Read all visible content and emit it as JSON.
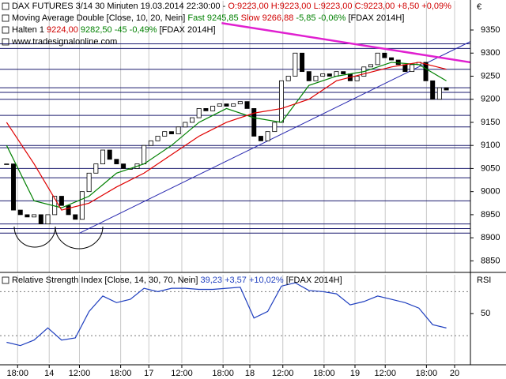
{
  "chart_data": [
    {
      "type": "candlestick",
      "legend_lines": [
        [
          {
            "text": "DAX FUTURES 3/14 30 Minuten  19.03.2014 22:30:00 -",
            "color": "#000000"
          },
          {
            "text": "O:9223,00 H:9223,00 L:9223,00 C:9223,00 +8,50 +0,09%",
            "color": "#d00000"
          }
        ],
        [
          {
            "text": "Moving Average Double [Close, 10, 20, Nein]",
            "color": "#000000"
          },
          {
            "text": "Fast 9245,85",
            "color": "#008000"
          },
          {
            "text": "Slow 9266,88",
            "color": "#d00000"
          },
          {
            "text": "-5,85 -0,06%",
            "color": "#008000"
          },
          {
            "text": "[FDAX 2014H]",
            "color": "#000000"
          }
        ],
        [
          {
            "text": "Halten 1",
            "color": "#000000"
          },
          {
            "text": "9224,00",
            "color": "#d00000"
          },
          {
            "text": "9282,50",
            "color": "#008000"
          },
          {
            "text": "-45 -0,49%",
            "color": "#008000"
          },
          {
            "text": "[FDAX 2014H]",
            "color": "#000000"
          }
        ],
        [
          {
            "text": "www.tradesignalonline.com",
            "color": "#000000"
          }
        ]
      ],
      "currency": "€",
      "xlim": [
        -0.5,
        67.5
      ],
      "xticks": [
        {
          "value": 1.6,
          "label": "18:00"
        },
        {
          "value": 6.2,
          "label": "14"
        },
        {
          "value": 10.6,
          "label": "12:00"
        },
        {
          "value": 16.6,
          "label": "18:00"
        },
        {
          "value": 20.7,
          "label": "17"
        },
        {
          "value": 25.5,
          "label": "12:00"
        },
        {
          "value": 31.5,
          "label": "18:00"
        },
        {
          "value": 35.4,
          "label": "18"
        },
        {
          "value": 40.2,
          "label": "12:00"
        },
        {
          "value": 46.2,
          "label": "18:00"
        },
        {
          "value": 50.7,
          "label": "19"
        },
        {
          "value": 55.1,
          "label": "12:00"
        },
        {
          "value": 61.1,
          "label": "18:00"
        },
        {
          "value": 65.2,
          "label": "20"
        }
      ],
      "ylim": [
        8825,
        9415
      ],
      "yticks": [
        8850,
        8900,
        8950,
        9000,
        9050,
        9100,
        9150,
        9200,
        9250,
        9300,
        9350
      ],
      "values": [
        9060,
        8960,
        8950,
        8945,
        8950,
        8930,
        8950,
        8990,
        8970,
        8950,
        8940,
        9000,
        9040,
        9060,
        9090,
        9070,
        9060,
        9050,
        9050,
        9060,
        9100,
        9110,
        9120,
        9130,
        9125,
        9140,
        9150,
        9160,
        9180,
        9175,
        9185,
        9190,
        9185,
        9190,
        9195,
        9180,
        9120,
        9110,
        9130,
        9150,
        9240,
        9250,
        9300,
        9260,
        9240,
        9250,
        9255,
        9250,
        9260,
        9255,
        9240,
        9250,
        9270,
        9275,
        9300,
        9290,
        9285,
        9275,
        9260,
        9275,
        9280,
        9240,
        9200,
        9225,
        9220
      ],
      "up_color": "#ffffff",
      "down_color": "#000000",
      "series": [
        {
          "color": "#008000",
          "x": [
            0,
            4,
            8,
            12,
            16,
            20,
            24,
            28,
            32,
            36,
            40,
            44,
            48,
            52,
            56,
            60,
            64
          ],
          "values": [
            9100,
            8980,
            8965,
            8990,
            9040,
            9060,
            9100,
            9150,
            9180,
            9160,
            9150,
            9230,
            9250,
            9260,
            9280,
            9275,
            9240
          ]
        },
        {
          "color": "#e00000",
          "x": [
            0,
            4,
            8,
            12,
            16,
            20,
            24,
            28,
            32,
            36,
            40,
            44,
            48,
            52,
            56,
            60,
            64
          ],
          "values": [
            9150,
            9060,
            8960,
            8975,
            9010,
            9040,
            9080,
            9120,
            9150,
            9170,
            9180,
            9200,
            9240,
            9255,
            9270,
            9280,
            9265
          ]
        }
      ],
      "levels": [
        9320,
        9310,
        9265,
        9225,
        9215,
        9200,
        9165,
        9140,
        9100,
        9095,
        9050,
        9030,
        8980,
        8930,
        8920,
        8910
      ],
      "level_color": "#1a1a6e",
      "trendlines": [
        {
          "color": "#2a2ab0",
          "x": [
            10.6,
            67.5
          ],
          "values": [
            8910,
            9325
          ]
        },
        {
          "color": "#e020d0",
          "x": [
            31.3,
            67.5
          ],
          "values": [
            9365,
            9280
          ]
        }
      ]
    },
    {
      "type": "line",
      "legend_lines": [
        [
          {
            "text": "Relative Strength Index [Close, 14, 30, 70, Nein]",
            "color": "#000000"
          },
          {
            "text": "39,23 +3,57 +10,02%",
            "color": "#1f3fbf"
          },
          {
            "text": "[FDAX 2014H]",
            "color": "#000000"
          }
        ]
      ],
      "axis_label": "RSI",
      "ylim": [
        5,
        86
      ],
      "yticks": [
        50
      ],
      "levels": [
        30,
        70
      ],
      "series": [
        {
          "color": "#1f3fbf",
          "x": [
            0,
            2,
            4,
            6,
            8,
            10,
            12,
            14,
            16,
            18,
            20,
            22,
            24,
            26,
            28,
            30,
            32,
            34,
            36,
            38,
            40,
            42,
            44,
            46,
            48,
            50,
            52,
            54,
            56,
            58,
            60,
            62,
            64
          ],
          "values": [
            24,
            21,
            26,
            37,
            26,
            28,
            52,
            66,
            60,
            63,
            73,
            70,
            73,
            73,
            72,
            72,
            73,
            74,
            46,
            52,
            75,
            78,
            71,
            70,
            68,
            58,
            61,
            66,
            63,
            60,
            55,
            40,
            37
          ]
        }
      ]
    }
  ]
}
